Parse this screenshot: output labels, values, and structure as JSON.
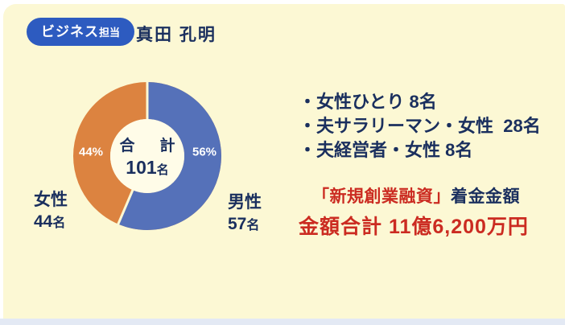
{
  "header": {
    "badge_main": "ビジネス",
    "badge_sub": "担当",
    "name": "真田 孔明"
  },
  "chart_data": {
    "type": "pie",
    "subtype": "donut",
    "title": "",
    "segments": [
      {
        "label": "男性",
        "value": 57,
        "pct": "56%",
        "color": "#5571B9"
      },
      {
        "label": "女性",
        "value": 44,
        "pct": "44%",
        "color": "#DC8340"
      }
    ],
    "total": 101,
    "center": {
      "label": "合　計",
      "value": "101",
      "unit": "名"
    },
    "legend": [
      {
        "label": "女性",
        "count": "44",
        "unit": "名",
        "position": "bottom-left"
      },
      {
        "label": "男性",
        "count": "57",
        "unit": "名",
        "position": "bottom-right"
      }
    ],
    "start_angle": "12-o-clock",
    "direction": "clockwise",
    "gap_color": "#FCF8D4",
    "hole_color": "#FFFCE8"
  },
  "breakdown": {
    "items": [
      "・女性ひとり 8名",
      "・夫サラリーマン・女性  28名",
      "・夫経営者・女性 8名"
    ]
  },
  "funding": {
    "title_red": "「新規創業融資」",
    "title_navy": "着金金額",
    "amount_line": "金額合計 11億6,200万円"
  },
  "colors": {
    "panel_bg": "#FCF8D4",
    "page_bg": "#FFFFFF",
    "bottom_bar": "#E3E9F4",
    "badge_bg": "#2D5BC0",
    "navy_text": "#1A2F5E",
    "red_text": "#CB2B21"
  }
}
